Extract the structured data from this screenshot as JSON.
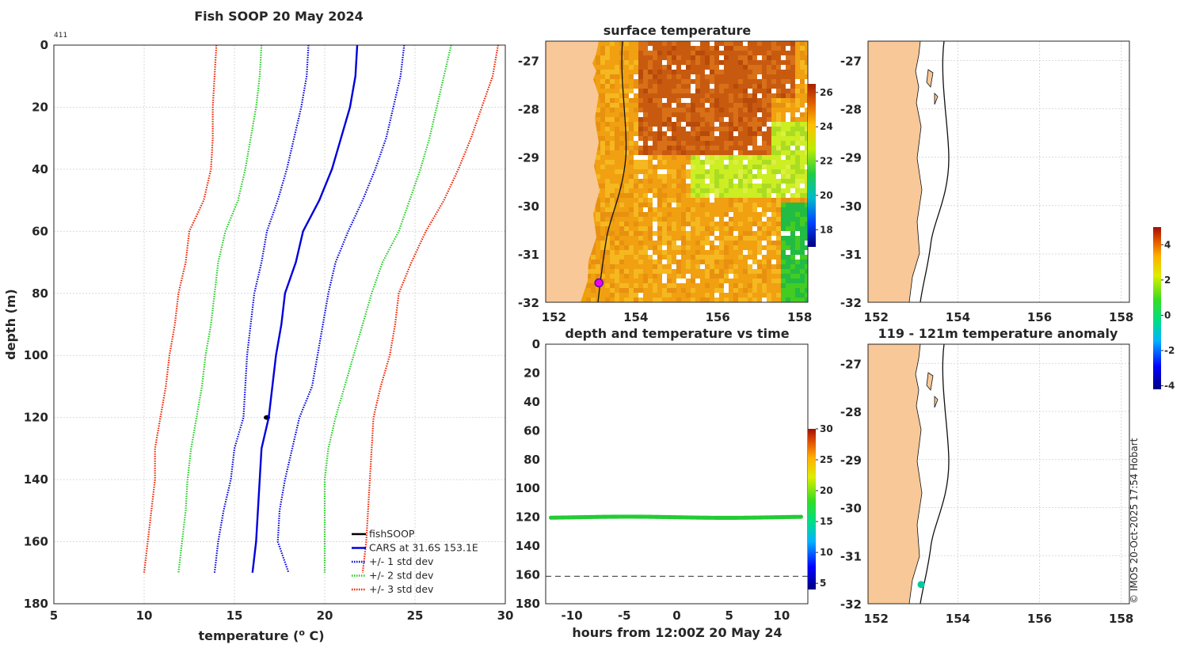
{
  "chart_data": [
    {
      "id": "profile",
      "type": "line",
      "title": "Fish SOOP 20 May 2024",
      "annotation": "411",
      "xlabel": "temperature (",
      "xlabel_sup": "o",
      "xlabel_tail": " C)",
      "ylabel": "depth (m)",
      "xlim": [
        5,
        30
      ],
      "ylim": [
        0,
        180
      ],
      "xticks": [
        "5",
        "10",
        "15",
        "20",
        "25",
        "30"
      ],
      "yticks": [
        "0",
        "20",
        "40",
        "60",
        "80",
        "100",
        "120",
        "140",
        "160",
        "180"
      ],
      "grid": true,
      "legend_position": "bottom-right",
      "depths": [
        0,
        10,
        20,
        30,
        40,
        50,
        60,
        70,
        80,
        90,
        100,
        110,
        120,
        130,
        140,
        150,
        160,
        170
      ],
      "series": [
        {
          "name": "fishSOOP",
          "color": "#000000",
          "style": "dot",
          "points": [
            [
              16.8,
              120
            ]
          ]
        },
        {
          "name": "CARS at 31.6S 153.1E",
          "color": "#0000dd",
          "style": "solid",
          "values": [
            21.8,
            21.7,
            21.4,
            20.9,
            20.4,
            19.7,
            18.8,
            18.4,
            17.8,
            17.6,
            17.3,
            17.1,
            16.9,
            16.5,
            16.4,
            16.3,
            16.2,
            16.0
          ]
        },
        {
          "name": "+/- 1 std dev",
          "color": "#0000dd",
          "style": "dotted",
          "values": [
            19.1,
            19.0,
            18.7,
            18.3,
            17.9,
            17.4,
            16.8,
            16.5,
            16.1,
            15.9,
            15.7,
            15.6,
            15.5,
            15.0,
            14.8,
            14.4,
            14.1,
            13.9
          ]
        },
        {
          "name": "+/- 1 std dev upper",
          "color": "#0000dd",
          "style": "dotted",
          "legend": false,
          "values": [
            24.4,
            24.2,
            23.8,
            23.4,
            22.8,
            22.1,
            21.3,
            20.6,
            20.2,
            19.9,
            19.6,
            19.3,
            18.6,
            18.2,
            17.8,
            17.5,
            17.4,
            18.0
          ]
        },
        {
          "name": "+/- 2 std dev",
          "color": "#22cc22",
          "style": "dotted",
          "values": [
            16.5,
            16.4,
            16.2,
            15.9,
            15.6,
            15.2,
            14.5,
            14.1,
            13.9,
            13.7,
            13.4,
            13.2,
            12.9,
            12.6,
            12.4,
            12.3,
            12.1,
            11.9
          ]
        },
        {
          "name": "+/- 2 std dev upper",
          "color": "#22cc22",
          "style": "dotted",
          "legend": false,
          "values": [
            27.0,
            26.6,
            26.2,
            25.8,
            25.3,
            24.7,
            24.1,
            23.2,
            22.6,
            22.1,
            21.6,
            21.1,
            20.6,
            20.2,
            20.0,
            20.0,
            20.0,
            20.0
          ]
        },
        {
          "name": "+/- 3 std dev",
          "color": "#ee2200",
          "style": "dotted",
          "values": [
            14.0,
            13.9,
            13.8,
            13.8,
            13.7,
            13.3,
            12.5,
            12.3,
            11.9,
            11.7,
            11.4,
            11.2,
            10.9,
            10.6,
            10.6,
            10.4,
            10.2,
            10.0
          ]
        },
        {
          "name": "+/- 3 std dev upper",
          "color": "#ee2200",
          "style": "dotted",
          "legend": false,
          "values": [
            29.6,
            29.3,
            28.7,
            28.1,
            27.4,
            26.6,
            25.6,
            24.8,
            24.1,
            23.9,
            23.6,
            23.1,
            22.7,
            22.6,
            22.5,
            22.4,
            22.3,
            22.1
          ]
        }
      ]
    },
    {
      "id": "sst",
      "type": "heatmap",
      "title": "surface temperature",
      "xlim": [
        151.8,
        158.2
      ],
      "ylim": [
        -32,
        -26.6
      ],
      "xticks": [
        "152",
        "154",
        "156",
        "158"
      ],
      "yticks": [
        "-27",
        "-28",
        "-29",
        "-30",
        "-31",
        "-32"
      ],
      "colorbar": {
        "min": 17,
        "max": 26.5,
        "ticks": [
          "18",
          "20",
          "22",
          "24",
          "26"
        ]
      },
      "marker": {
        "lon": 153.1,
        "lat": -31.6,
        "color": "#cc00cc"
      }
    },
    {
      "id": "depthtime",
      "type": "scatter",
      "title": "depth and temperature vs time",
      "xlabel": "hours from 12:00Z 20 May 24",
      "xlim": [
        -12.5,
        12.5
      ],
      "ylim": [
        0,
        180
      ],
      "xticks": [
        "-10",
        "-5",
        "0",
        "5",
        "10"
      ],
      "yticks": [
        "0",
        "20",
        "40",
        "60",
        "80",
        "100",
        "120",
        "140",
        "160",
        "180"
      ],
      "reference_depth": 161,
      "series_depth": 120,
      "series_temp": 17,
      "colorbar": {
        "min": 4,
        "max": 30,
        "ticks": [
          "5",
          "10",
          "15",
          "20",
          "25",
          "30"
        ]
      }
    },
    {
      "id": "map_top",
      "type": "scatter",
      "title": "",
      "xlim": [
        151.8,
        158.2
      ],
      "ylim": [
        -32,
        -26.6
      ],
      "xticks": [
        "152",
        "154",
        "156",
        "158"
      ],
      "yticks": [
        "-27",
        "-28",
        "-29",
        "-30",
        "-31",
        "-32"
      ]
    },
    {
      "id": "anomaly",
      "type": "scatter",
      "title": "119 - 121m temperature anomaly",
      "xlim": [
        151.8,
        158.2
      ],
      "ylim": [
        -32,
        -26.6
      ],
      "xticks": [
        "152",
        "154",
        "156",
        "158"
      ],
      "yticks": [
        "-27",
        "-28",
        "-29",
        "-30",
        "-31",
        "-32"
      ],
      "points": [
        {
          "lon": 153.1,
          "lat": -31.6,
          "anomaly": -0.5
        }
      ],
      "colorbar": {
        "min": -4.2,
        "max": 5,
        "ticks": [
          "-4",
          "-2",
          "0",
          "2",
          "4"
        ]
      }
    }
  ],
  "credit": "© IMOS 20-Oct-2025 17:54 Hobart",
  "colors": {
    "land": "#f8c898",
    "axis": "#262626"
  }
}
